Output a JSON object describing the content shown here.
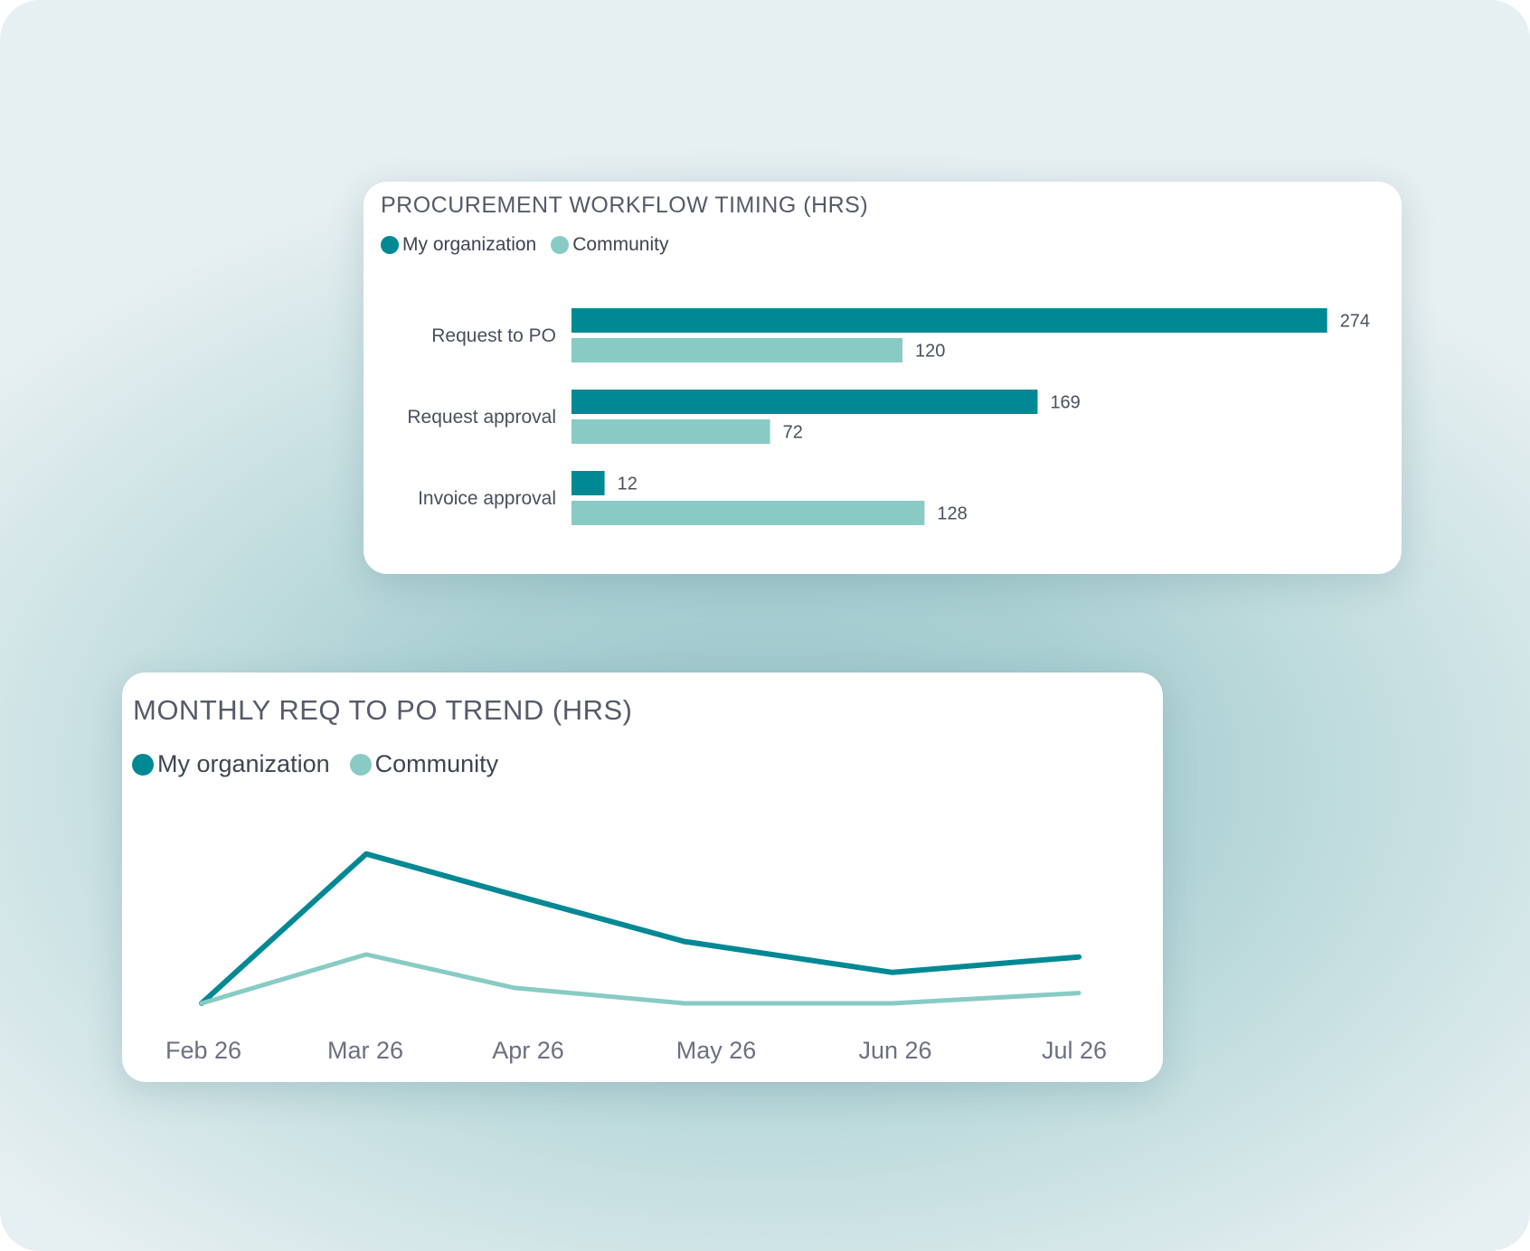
{
  "colors": {
    "my_org": "#008894",
    "community": "#87cbc4"
  },
  "bar_card": {
    "title": "PROCUREMENT WORKFLOW TIMING (HRS)",
    "legend": {
      "my_org": "My organization",
      "community": "Community"
    }
  },
  "line_card": {
    "title": "MONTHLY REQ TO PO TREND (HRS)",
    "legend": {
      "my_org": "My organization",
      "community": "Community"
    }
  },
  "chart_data": [
    {
      "type": "bar",
      "orientation": "horizontal",
      "title": "PROCUREMENT WORKFLOW TIMING (HRS)",
      "categories": [
        "Request to PO",
        "Request approval",
        "Invoice approval"
      ],
      "series": [
        {
          "name": "My organization",
          "values": [
            274,
            169,
            12
          ]
        },
        {
          "name": "Community",
          "values": [
            120,
            72,
            128
          ]
        }
      ],
      "legend_position": "top-left",
      "grid": false
    },
    {
      "type": "line",
      "title": "MONTHLY REQ TO PO TREND (HRS)",
      "x": [
        "Feb 26",
        "Mar 26",
        "Apr 26",
        "May 26",
        "Jun 26",
        "Jul 26"
      ],
      "series": [
        {
          "name": "My organization",
          "values": [
            0,
            58,
            42,
            24,
            12,
            18
          ]
        },
        {
          "name": "Community",
          "values": [
            0,
            19,
            6,
            0,
            0,
            4
          ]
        }
      ],
      "legend_position": "top-left",
      "grid": false
    }
  ]
}
